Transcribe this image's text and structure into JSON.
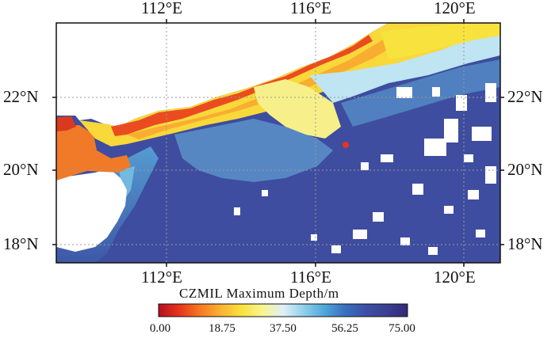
{
  "map": {
    "lon_ticks": [
      "112°E",
      "116°E",
      "120°E"
    ],
    "lat_ticks": [
      "22°N",
      "20°N",
      "18°N"
    ],
    "colorbar": {
      "title": "CZMIL Maximum Depth/m",
      "tick_labels": [
        "0.00",
        "18.75",
        "37.50",
        "56.25",
        "75.00"
      ],
      "colors": [
        "#b40f20",
        "#e8341c",
        "#f57a22",
        "#fbb233",
        "#f9e23c",
        "#f7f58f",
        "#dff0f7",
        "#8ed1ea",
        "#4fa6d9",
        "#3a6fbd",
        "#3b4fa6",
        "#3a3f91",
        "#34297a"
      ]
    },
    "style": {
      "deep_color": "#3e4d9f",
      "land_color": "#ffffff",
      "grid_color": "#9a9a9a"
    }
  }
}
